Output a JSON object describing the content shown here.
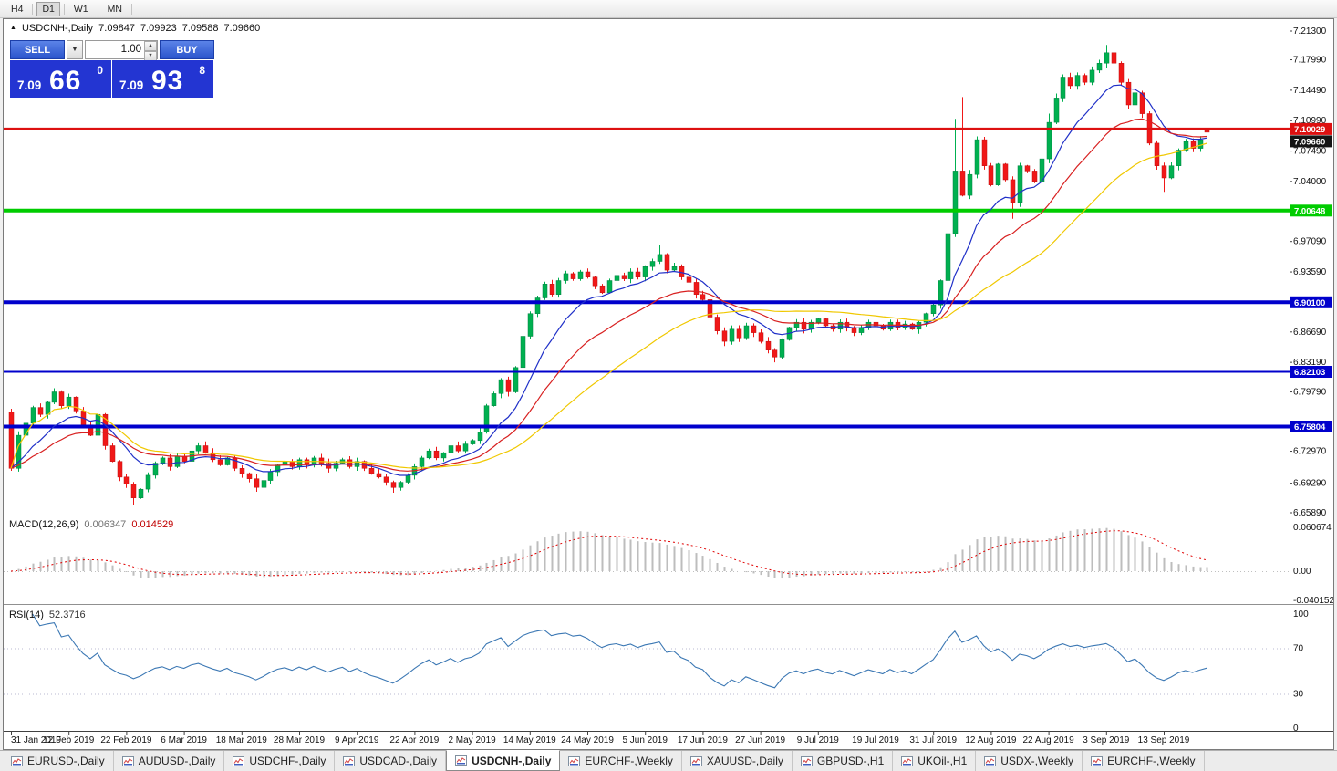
{
  "icons": {
    "collapse": "▲",
    "dropdown": "▼",
    "spin_up": "▲",
    "spin_down": "▼"
  },
  "toolbar": {
    "timeframes": [
      {
        "label": "H4",
        "active": false
      },
      {
        "label": "D1",
        "active": true
      },
      {
        "label": "W1",
        "active": false
      },
      {
        "label": "MN",
        "active": false
      }
    ]
  },
  "chart": {
    "title_symbol": "USDCNH-,Daily",
    "ohlc": {
      "o": "7.09847",
      "h": "7.09923",
      "l": "7.09588",
      "c": "7.09660"
    },
    "trade_panel": {
      "sell_label": "SELL",
      "buy_label": "BUY",
      "volume": "1.00",
      "bid": {
        "prefix": "7.09",
        "big": "66",
        "sup": "0"
      },
      "ask": {
        "prefix": "7.09",
        "big": "93",
        "sup": "8"
      }
    }
  },
  "chart_data": {
    "type": "candlestick",
    "symbol": "USDCNH",
    "period": "Daily",
    "title": "USDCNH-,Daily 7.09847 7.09923 7.09588 7.09660",
    "x": {
      "labels": [
        "31 Jan 2019",
        "12 Feb 2019",
        "22 Feb 2019",
        "6 Mar 2019",
        "18 Mar 2019",
        "28 Mar 2019",
        "9 Apr 2019",
        "22 Apr 2019",
        "2 May 2019",
        "14 May 2019",
        "24 May 2019",
        "5 Jun 2019",
        "17 Jun 2019",
        "27 Jun 2019",
        "9 Jul 2019",
        "19 Jul 2019",
        "31 Jul 2019",
        "12 Aug 2019",
        "22 Aug 2019",
        "3 Sep 2019",
        "13 Sep 2019"
      ],
      "label_every": 8
    },
    "price_axis": {
      "labels": [
        "7.21300",
        "7.17990",
        "7.14490",
        "7.10990",
        "7.07490",
        "7.04000",
        "6.97090",
        "6.93590",
        "6.86690",
        "6.83190",
        "6.79790",
        "6.72970",
        "6.69290",
        "6.65890"
      ],
      "min": 6.6589,
      "max": 7.213
    },
    "candles": {
      "first_open": 6.775,
      "closes": [
        6.71,
        6.748,
        6.762,
        6.78,
        6.772,
        6.786,
        6.798,
        6.782,
        6.792,
        6.776,
        6.76,
        6.748,
        6.772,
        6.736,
        6.718,
        6.7,
        6.692,
        6.676,
        6.686,
        6.702,
        6.716,
        6.722,
        6.712,
        6.724,
        6.718,
        6.73,
        6.736,
        6.728,
        6.72,
        6.714,
        6.722,
        6.71,
        6.704,
        6.698,
        6.688,
        6.696,
        6.706,
        6.714,
        6.718,
        6.712,
        6.72,
        6.714,
        6.722,
        6.716,
        6.71,
        6.716,
        6.72,
        6.712,
        6.718,
        6.71,
        6.704,
        6.7,
        6.694,
        6.688,
        6.694,
        6.702,
        6.712,
        6.722,
        6.73,
        6.722,
        6.728,
        6.736,
        6.73,
        6.738,
        6.742,
        6.752,
        6.782,
        6.796,
        6.812,
        6.798,
        6.826,
        6.862,
        6.888,
        6.906,
        6.922,
        6.91,
        6.926,
        6.934,
        6.928,
        6.936,
        6.93,
        6.92,
        6.912,
        6.926,
        6.932,
        6.928,
        6.936,
        6.93,
        6.942,
        6.948,
        6.956,
        6.938,
        6.942,
        6.93,
        6.924,
        6.91,
        6.904,
        6.884,
        6.868,
        6.856,
        6.87,
        6.86,
        6.874,
        6.866,
        6.856,
        6.846,
        6.838,
        6.858,
        6.872,
        6.878,
        6.87,
        6.878,
        6.882,
        6.874,
        6.87,
        6.878,
        6.872,
        6.866,
        6.872,
        6.878,
        6.874,
        6.87,
        6.878,
        6.872,
        6.876,
        6.87,
        6.878,
        6.888,
        6.898,
        6.926,
        6.98,
        7.052,
        7.024,
        7.048,
        7.088,
        7.058,
        7.036,
        7.06,
        7.042,
        7.016,
        7.058,
        7.052,
        7.04,
        7.066,
        7.108,
        7.136,
        7.16,
        7.15,
        7.162,
        7.154,
        7.168,
        7.176,
        7.188,
        7.176,
        7.154,
        7.128,
        7.142,
        7.118,
        7.084,
        7.058,
        7.044,
        7.058,
        7.076,
        7.086,
        7.078,
        7.088,
        7.0966
      ],
      "overrides": {
        "17": {
          "low": 6.668
        },
        "34": {
          "low": 6.683
        },
        "53": {
          "low": 6.682
        },
        "90": {
          "high": 6.967
        },
        "106": {
          "low": 6.832
        },
        "131": {
          "high": 7.112
        },
        "132": {
          "high": 7.137
        },
        "139": {
          "low": 6.997
        },
        "144": {
          "high": 7.118
        },
        "152": {
          "high": 7.197
        },
        "160": {
          "low": 7.028
        },
        "166": {
          "open": 7.09847,
          "high": 7.09923,
          "low": 7.09588,
          "close": 7.0966
        }
      }
    },
    "moving_averages": [
      {
        "name": "ma-fast",
        "type": "ema",
        "period": 10,
        "color": "#2030c8"
      },
      {
        "name": "ma-medium",
        "type": "ema",
        "period": 21,
        "color": "#d82020"
      },
      {
        "name": "ma-slow",
        "type": "lwma",
        "period": 50,
        "color": "#f0c800"
      }
    ],
    "hlines": [
      {
        "value": 7.10029,
        "label": "7.10029",
        "color": "#dd1010",
        "width": 3
      },
      {
        "value": 7.00648,
        "label": "7.00648",
        "color": "#00cc00",
        "width": 4
      },
      {
        "value": 6.901,
        "label": "6.90100",
        "color": "#0000cc",
        "width": 4
      },
      {
        "value": 6.82103,
        "label": "6.82103",
        "color": "#0000cc",
        "width": 2
      },
      {
        "value": 6.75804,
        "label": "6.75804",
        "color": "#0000cc",
        "width": 4
      }
    ],
    "current_price": {
      "value": 7.0966,
      "label": "7.09660",
      "badge_color": "#141414"
    },
    "macd": {
      "label": "MACD(12,26,9)",
      "value_main": "0.006347",
      "value_signal": "0.014529",
      "fast": 12,
      "slow": 26,
      "signal_period": 9,
      "axis": [
        {
          "label": "0.060674",
          "value": 0.060674
        },
        {
          "label": "0.00",
          "value": 0
        },
        {
          "label": "-0.040152",
          "value": -0.040152
        }
      ]
    },
    "rsi": {
      "label": "RSI(14)",
      "value": "52.3716",
      "period": 14,
      "levels": [
        70,
        30
      ],
      "axis": [
        {
          "label": "100",
          "value": 100
        },
        {
          "label": "70",
          "value": 70
        },
        {
          "label": "30",
          "value": 30
        },
        {
          "label": "0",
          "value": 0
        }
      ]
    }
  },
  "tabs": [
    {
      "label": "EURUSD-,Daily",
      "active": false
    },
    {
      "label": "AUDUSD-,Daily",
      "active": false
    },
    {
      "label": "USDCHF-,Daily",
      "active": false
    },
    {
      "label": "USDCAD-,Daily",
      "active": false
    },
    {
      "label": "USDCNH-,Daily",
      "active": true
    },
    {
      "label": "EURCHF-,Weekly",
      "active": false
    },
    {
      "label": "XAUUSD-,Daily",
      "active": false
    },
    {
      "label": "GBPUSD-,H1",
      "active": false
    },
    {
      "label": "UKOil-,H1",
      "active": false
    },
    {
      "label": "USDX-,Weekly",
      "active": false
    },
    {
      "label": "EURCHF-,Weekly",
      "active": false
    }
  ]
}
